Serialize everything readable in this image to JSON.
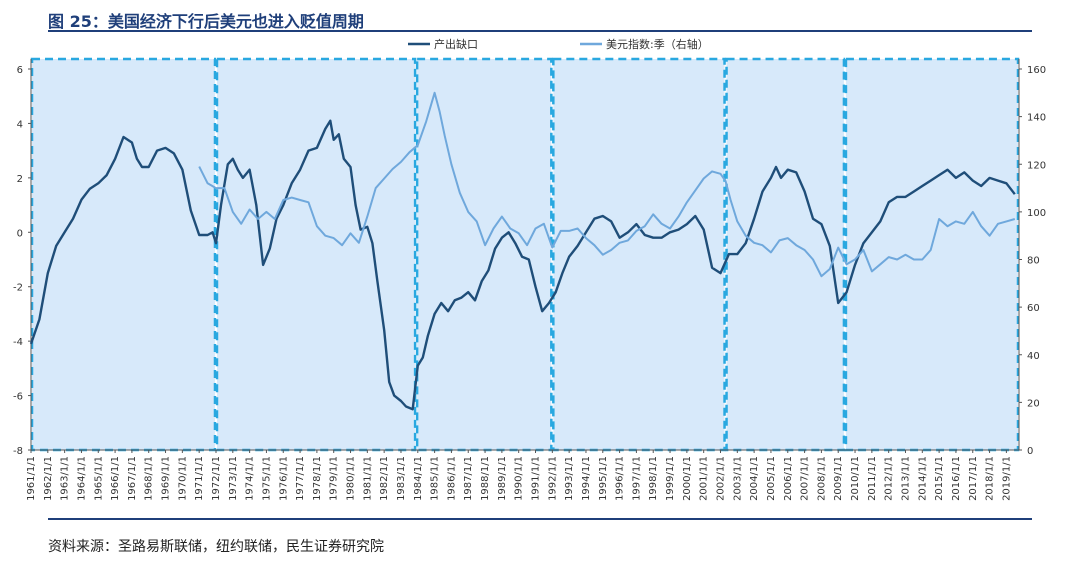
{
  "header": {
    "title": "图 25：美国经济下行后美元也进入贬值周期"
  },
  "footer": {
    "source": "资料来源：圣路易斯联储，纽约联储，民生证券研究院"
  },
  "chart_data": {
    "type": "line",
    "y_left_range": [
      -8,
      6
    ],
    "y_left_ticks": [
      6,
      4,
      2,
      0,
      -2,
      -4,
      -6,
      -8
    ],
    "y_right_range": [
      0,
      160
    ],
    "y_right_ticks": [
      160,
      140,
      120,
      100,
      80,
      60,
      40,
      20,
      0
    ],
    "x_range": [
      1961,
      2019.75
    ],
    "x_ticks": [
      "1961/1/1",
      "1962/1/1",
      "1963/1/1",
      "1964/1/1",
      "1965/1/1",
      "1966/1/1",
      "1967/1/1",
      "1968/1/1",
      "1969/1/1",
      "1970/1/1",
      "1971/1/1",
      "1972/1/1",
      "1973/1/1",
      "1974/1/1",
      "1975/1/1",
      "1976/1/1",
      "1977/1/1",
      "1978/1/1",
      "1979/1/1",
      "1980/1/1",
      "1981/1/1",
      "1982/1/1",
      "1983/1/1",
      "1984/1/1",
      "1985/1/1",
      "1986/1/1",
      "1987/1/1",
      "1988/1/1",
      "1989/1/1",
      "1990/1/1",
      "1991/1/1",
      "1992/1/1",
      "1993/1/1",
      "1994/1/1",
      "1995/1/1",
      "1996/1/1",
      "1997/1/1",
      "1998/1/1",
      "1999/1/1",
      "2000/1/1",
      "2001/1/1",
      "2002/1/1",
      "2003/1/1",
      "2004/1/1",
      "2005/1/1",
      "2006/1/1",
      "2007/1/1",
      "2008/1/1",
      "2009/1/1",
      "2010/1/1",
      "2011/1/1",
      "2012/1/1",
      "2013/1/1",
      "2014/1/1",
      "2015/1/1",
      "2016/1/1",
      "2017/1/1",
      "2018/1/1",
      "2019/1/1"
    ],
    "periods": [
      [
        1961,
        1972
      ],
      [
        1972,
        1983.9
      ],
      [
        1983.9,
        1992
      ],
      [
        1992,
        2002.3
      ],
      [
        2002.3,
        2009.4
      ],
      [
        2009.4,
        2019.75
      ]
    ],
    "legend_position": "top-center",
    "series": [
      {
        "name": "产出缺口",
        "axis": "left",
        "color": "#1f4e79",
        "points": [
          [
            1961.0,
            -4.1
          ],
          [
            1961.5,
            -3.2
          ],
          [
            1962.0,
            -1.5
          ],
          [
            1962.5,
            -0.5
          ],
          [
            1963.0,
            0.0
          ],
          [
            1963.5,
            0.5
          ],
          [
            1964.0,
            1.2
          ],
          [
            1964.5,
            1.6
          ],
          [
            1965.0,
            1.8
          ],
          [
            1965.5,
            2.1
          ],
          [
            1966.0,
            2.7
          ],
          [
            1966.5,
            3.5
          ],
          [
            1967.0,
            3.3
          ],
          [
            1967.3,
            2.7
          ],
          [
            1967.6,
            2.4
          ],
          [
            1968.0,
            2.4
          ],
          [
            1968.5,
            3.0
          ],
          [
            1969.0,
            3.1
          ],
          [
            1969.5,
            2.9
          ],
          [
            1970.0,
            2.3
          ],
          [
            1970.5,
            0.8
          ],
          [
            1971.0,
            -0.1
          ],
          [
            1971.5,
            -0.1
          ],
          [
            1971.8,
            0.0
          ],
          [
            1972.0,
            -0.4
          ],
          [
            1972.3,
            1.0
          ],
          [
            1972.7,
            2.5
          ],
          [
            1973.0,
            2.7
          ],
          [
            1973.3,
            2.3
          ],
          [
            1973.6,
            2.0
          ],
          [
            1974.0,
            2.3
          ],
          [
            1974.4,
            1.0
          ],
          [
            1974.8,
            -1.2
          ],
          [
            1975.2,
            -0.6
          ],
          [
            1975.6,
            0.5
          ],
          [
            1976.0,
            1.0
          ],
          [
            1976.5,
            1.8
          ],
          [
            1977.0,
            2.3
          ],
          [
            1977.5,
            3.0
          ],
          [
            1978.0,
            3.1
          ],
          [
            1978.5,
            3.8
          ],
          [
            1978.8,
            4.1
          ],
          [
            1979.0,
            3.4
          ],
          [
            1979.3,
            3.6
          ],
          [
            1979.6,
            2.7
          ],
          [
            1980.0,
            2.4
          ],
          [
            1980.3,
            1.0
          ],
          [
            1980.6,
            0.1
          ],
          [
            1981.0,
            0.2
          ],
          [
            1981.3,
            -0.4
          ],
          [
            1981.6,
            -1.8
          ],
          [
            1982.0,
            -3.6
          ],
          [
            1982.3,
            -5.5
          ],
          [
            1982.6,
            -6.0
          ],
          [
            1983.0,
            -6.2
          ],
          [
            1983.3,
            -6.4
          ],
          [
            1983.7,
            -6.5
          ],
          [
            1984.0,
            -4.9
          ],
          [
            1984.3,
            -4.6
          ],
          [
            1984.6,
            -3.8
          ],
          [
            1985.0,
            -3.0
          ],
          [
            1985.4,
            -2.6
          ],
          [
            1985.8,
            -2.9
          ],
          [
            1986.2,
            -2.5
          ],
          [
            1986.6,
            -2.4
          ],
          [
            1987.0,
            -2.2
          ],
          [
            1987.4,
            -2.5
          ],
          [
            1987.8,
            -1.8
          ],
          [
            1988.2,
            -1.4
          ],
          [
            1988.6,
            -0.6
          ],
          [
            1989.0,
            -0.2
          ],
          [
            1989.4,
            0.0
          ],
          [
            1989.8,
            -0.4
          ],
          [
            1990.2,
            -0.9
          ],
          [
            1990.6,
            -1.0
          ],
          [
            1991.0,
            -2.0
          ],
          [
            1991.4,
            -2.9
          ],
          [
            1991.8,
            -2.6
          ],
          [
            1992.2,
            -2.2
          ],
          [
            1992.6,
            -1.5
          ],
          [
            1993.0,
            -0.9
          ],
          [
            1993.5,
            -0.5
          ],
          [
            1994.0,
            0.0
          ],
          [
            1994.5,
            0.5
          ],
          [
            1995.0,
            0.6
          ],
          [
            1995.5,
            0.4
          ],
          [
            1996.0,
            -0.2
          ],
          [
            1996.5,
            0.0
          ],
          [
            1997.0,
            0.3
          ],
          [
            1997.5,
            -0.1
          ],
          [
            1998.0,
            -0.2
          ],
          [
            1998.5,
            -0.2
          ],
          [
            1999.0,
            0.0
          ],
          [
            1999.5,
            0.1
          ],
          [
            2000.0,
            0.3
          ],
          [
            2000.5,
            0.6
          ],
          [
            2001.0,
            0.1
          ],
          [
            2001.5,
            -1.3
          ],
          [
            2002.0,
            -1.5
          ],
          [
            2002.5,
            -0.8
          ],
          [
            2003.0,
            -0.8
          ],
          [
            2003.5,
            -0.4
          ],
          [
            2004.0,
            0.5
          ],
          [
            2004.5,
            1.5
          ],
          [
            2005.0,
            2.0
          ],
          [
            2005.3,
            2.4
          ],
          [
            2005.6,
            2.0
          ],
          [
            2006.0,
            2.3
          ],
          [
            2006.5,
            2.2
          ],
          [
            2007.0,
            1.5
          ],
          [
            2007.5,
            0.5
          ],
          [
            2008.0,
            0.3
          ],
          [
            2008.5,
            -0.5
          ],
          [
            2009.0,
            -2.6
          ],
          [
            2009.5,
            -2.2
          ],
          [
            2010.0,
            -1.2
          ],
          [
            2010.5,
            -0.4
          ],
          [
            2011.0,
            0.0
          ],
          [
            2011.5,
            0.4
          ],
          [
            2012.0,
            1.1
          ],
          [
            2012.5,
            1.3
          ],
          [
            2013.0,
            1.3
          ],
          [
            2013.5,
            1.5
          ],
          [
            2014.0,
            1.7
          ],
          [
            2014.5,
            1.9
          ],
          [
            2015.0,
            2.1
          ],
          [
            2015.5,
            2.3
          ],
          [
            2016.0,
            2.0
          ],
          [
            2016.5,
            2.2
          ],
          [
            2017.0,
            1.9
          ],
          [
            2017.5,
            1.7
          ],
          [
            2018.0,
            2.0
          ],
          [
            2018.5,
            1.9
          ],
          [
            2019.0,
            1.8
          ],
          [
            2019.5,
            1.4
          ]
        ]
      },
      {
        "name": "美元指数:季（右轴）",
        "axis": "right",
        "color": "#6fa8dc",
        "points": [
          [
            1971.0,
            119
          ],
          [
            1971.5,
            112
          ],
          [
            1972.0,
            110
          ],
          [
            1972.5,
            110
          ],
          [
            1973.0,
            100
          ],
          [
            1973.5,
            95
          ],
          [
            1974.0,
            101
          ],
          [
            1974.5,
            97
          ],
          [
            1975.0,
            100
          ],
          [
            1975.5,
            97
          ],
          [
            1976.0,
            105
          ],
          [
            1976.5,
            106
          ],
          [
            1977.0,
            105
          ],
          [
            1977.5,
            104
          ],
          [
            1978.0,
            94
          ],
          [
            1978.5,
            90
          ],
          [
            1979.0,
            89
          ],
          [
            1979.5,
            86
          ],
          [
            1980.0,
            91
          ],
          [
            1980.5,
            87
          ],
          [
            1981.0,
            98
          ],
          [
            1981.5,
            110
          ],
          [
            1982.0,
            114
          ],
          [
            1982.5,
            118
          ],
          [
            1983.0,
            121
          ],
          [
            1983.5,
            125
          ],
          [
            1984.0,
            128
          ],
          [
            1984.5,
            138
          ],
          [
            1985.0,
            150
          ],
          [
            1985.3,
            142
          ],
          [
            1985.6,
            132
          ],
          [
            1986.0,
            120
          ],
          [
            1986.5,
            108
          ],
          [
            1987.0,
            100
          ],
          [
            1987.5,
            96
          ],
          [
            1988.0,
            86
          ],
          [
            1988.5,
            93
          ],
          [
            1989.0,
            98
          ],
          [
            1989.5,
            93
          ],
          [
            1990.0,
            91
          ],
          [
            1990.5,
            86
          ],
          [
            1991.0,
            93
          ],
          [
            1991.5,
            95
          ],
          [
            1992.0,
            85
          ],
          [
            1992.5,
            92
          ],
          [
            1993.0,
            92
          ],
          [
            1993.5,
            93
          ],
          [
            1994.0,
            89
          ],
          [
            1994.5,
            86
          ],
          [
            1995.0,
            82
          ],
          [
            1995.5,
            84
          ],
          [
            1996.0,
            87
          ],
          [
            1996.5,
            88
          ],
          [
            1997.0,
            92
          ],
          [
            1997.5,
            94
          ],
          [
            1998.0,
            99
          ],
          [
            1998.5,
            95
          ],
          [
            1999.0,
            93
          ],
          [
            1999.5,
            98
          ],
          [
            2000.0,
            104
          ],
          [
            2000.5,
            109
          ],
          [
            2001.0,
            114
          ],
          [
            2001.5,
            117
          ],
          [
            2002.0,
            116
          ],
          [
            2002.3,
            113
          ],
          [
            2002.6,
            105
          ],
          [
            2003.0,
            96
          ],
          [
            2003.5,
            90
          ],
          [
            2004.0,
            87
          ],
          [
            2004.5,
            86
          ],
          [
            2005.0,
            83
          ],
          [
            2005.5,
            88
          ],
          [
            2006.0,
            89
          ],
          [
            2006.5,
            86
          ],
          [
            2007.0,
            84
          ],
          [
            2007.5,
            80
          ],
          [
            2008.0,
            73
          ],
          [
            2008.5,
            76
          ],
          [
            2009.0,
            85
          ],
          [
            2009.5,
            78
          ],
          [
            2010.0,
            80
          ],
          [
            2010.5,
            84
          ],
          [
            2011.0,
            75
          ],
          [
            2011.5,
            78
          ],
          [
            2012.0,
            81
          ],
          [
            2012.5,
            80
          ],
          [
            2013.0,
            82
          ],
          [
            2013.5,
            80
          ],
          [
            2014.0,
            80
          ],
          [
            2014.5,
            84
          ],
          [
            2015.0,
            97
          ],
          [
            2015.5,
            94
          ],
          [
            2016.0,
            96
          ],
          [
            2016.5,
            95
          ],
          [
            2017.0,
            100
          ],
          [
            2017.5,
            94
          ],
          [
            2018.0,
            90
          ],
          [
            2018.5,
            95
          ],
          [
            2019.0,
            96
          ],
          [
            2019.5,
            97
          ]
        ]
      }
    ]
  }
}
